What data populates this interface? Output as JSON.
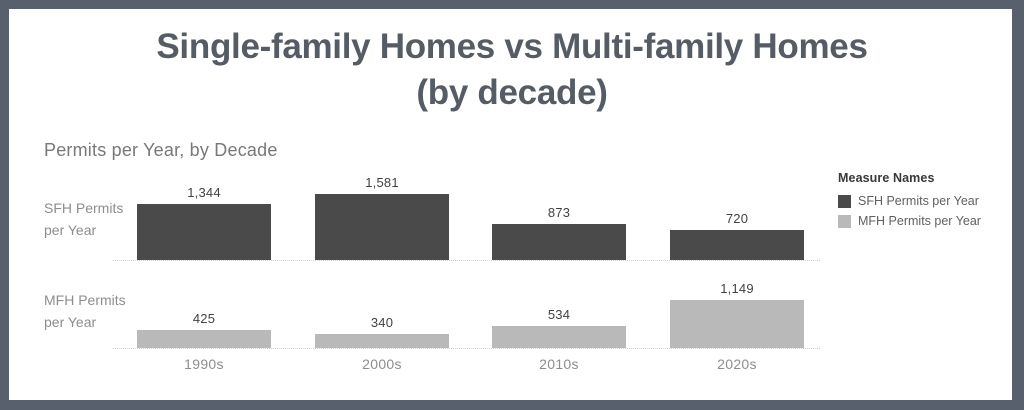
{
  "title": {
    "line1": "Single-family Homes vs Multi-family Homes",
    "line2": "(by decade)"
  },
  "worksheet_title": "Permits per Year, by Decade",
  "legend": {
    "title": "Measure Names",
    "items": [
      {
        "label": "SFH Permits per Year",
        "color": "#4a4a4a"
      },
      {
        "label": "MFH Permits per Year",
        "color": "#b9b9b9"
      }
    ]
  },
  "colors": {
    "frame_border": "#59606d",
    "title_text": "#555c66",
    "subtitle_text": "#787878",
    "muted_text": "#8d8d8d",
    "value_label_text": "#424242",
    "dotted_line": "#cfcfcf",
    "sfh_bar": "#4a4a4a",
    "mfh_bar": "#b9b9b9"
  },
  "chart_data": {
    "type": "bar",
    "title": "Permits per Year, by Decade",
    "xlabel": "",
    "ylabel": "",
    "categories": [
      "1990s",
      "2000s",
      "2010s",
      "2020s"
    ],
    "series": [
      {
        "name": "SFH Permits per Year",
        "row_label_lines": [
          "SFH Permits",
          "per Year"
        ],
        "values": [
          1344,
          1581,
          873,
          720
        ],
        "value_labels": [
          "1,344",
          "1,581",
          "873",
          "720"
        ],
        "color": "#4a4a4a"
      },
      {
        "name": "MFH Permits per Year",
        "row_label_lines": [
          "MFH Permits",
          "per Year"
        ],
        "values": [
          425,
          340,
          534,
          1149
        ],
        "value_labels": [
          "425",
          "340",
          "534",
          "1,149"
        ],
        "color": "#b9b9b9"
      }
    ],
    "legend_position": "right",
    "grid": false,
    "layout": "trellis with one row per measure, value labels above bars, dotted zero line per row",
    "value_axis": {
      "visible": false,
      "approx_units_per_pixel": 24
    }
  }
}
